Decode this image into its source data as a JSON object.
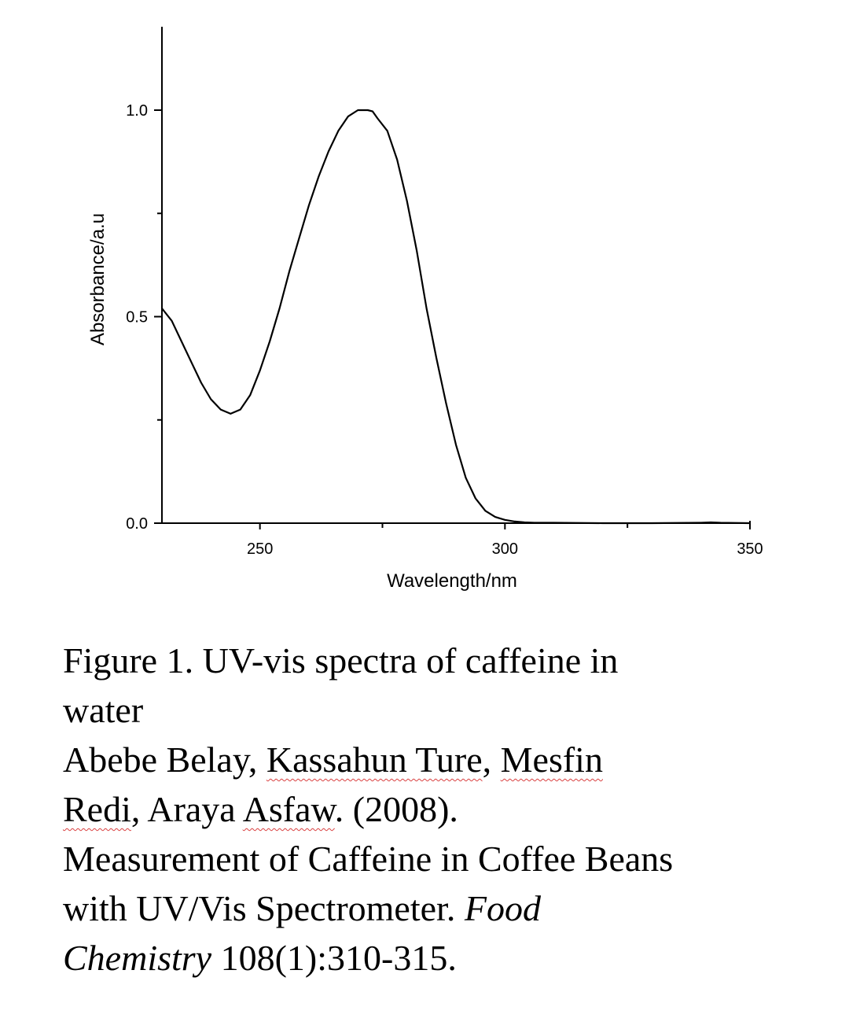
{
  "chart_data": {
    "type": "line",
    "xlabel": "Wavelength/nm",
    "ylabel": "Absorbance/a.u",
    "xlim": [
      230,
      350
    ],
    "ylim": [
      0,
      1.2
    ],
    "x_ticks": [
      250,
      300,
      350
    ],
    "x_minor_ticks": [
      275,
      325
    ],
    "y_ticks": [
      0.0,
      0.5,
      1.0
    ],
    "y_tick_labels": [
      "0.0",
      "0.5",
      "1.0"
    ],
    "y_minor_ticks": [
      0.25,
      0.75
    ],
    "grid": false,
    "series": [
      {
        "x": [
          230,
          232,
          234,
          236,
          238,
          240,
          242,
          244,
          246,
          248,
          250,
          252,
          254,
          256,
          258,
          260,
          262,
          264,
          266,
          268,
          270,
          272,
          273,
          274,
          276,
          278,
          280,
          282,
          284,
          286,
          288,
          290,
          292,
          294,
          296,
          298,
          300,
          302,
          304,
          306,
          310,
          320,
          330,
          340,
          342,
          344,
          350
        ],
        "y": [
          0.52,
          0.49,
          0.44,
          0.39,
          0.34,
          0.3,
          0.275,
          0.265,
          0.275,
          0.31,
          0.37,
          0.44,
          0.52,
          0.61,
          0.69,
          0.77,
          0.84,
          0.9,
          0.95,
          0.985,
          1.0,
          1.0,
          0.997,
          0.98,
          0.95,
          0.88,
          0.78,
          0.66,
          0.52,
          0.4,
          0.29,
          0.19,
          0.11,
          0.06,
          0.03,
          0.015,
          0.008,
          0.004,
          0.002,
          0.001,
          0.001,
          0.0,
          0.0,
          0.001,
          0.002,
          0.001,
          0.0
        ]
      }
    ]
  },
  "caption": {
    "line1": "Figure 1.  UV-vis spectra of caffeine in",
    "line2": "water",
    "line3_a": "Abebe Belay, ",
    "line3_b": "Kassahun Ture",
    "line3_c": ", ",
    "line3_d": "Mesfin",
    "line4_a": "Redi",
    "line4_b": ", Araya ",
    "line4_c": "Asfaw",
    "line4_d": ".  (2008).",
    "line5": "Measurement of Caffeine in Coffee Beans",
    "line6_a": "with UV/Vis Spectrometer.  ",
    "line6_b": "Food",
    "line7_a": "Chemistry",
    "line7_b": " 108(1):310-315."
  }
}
